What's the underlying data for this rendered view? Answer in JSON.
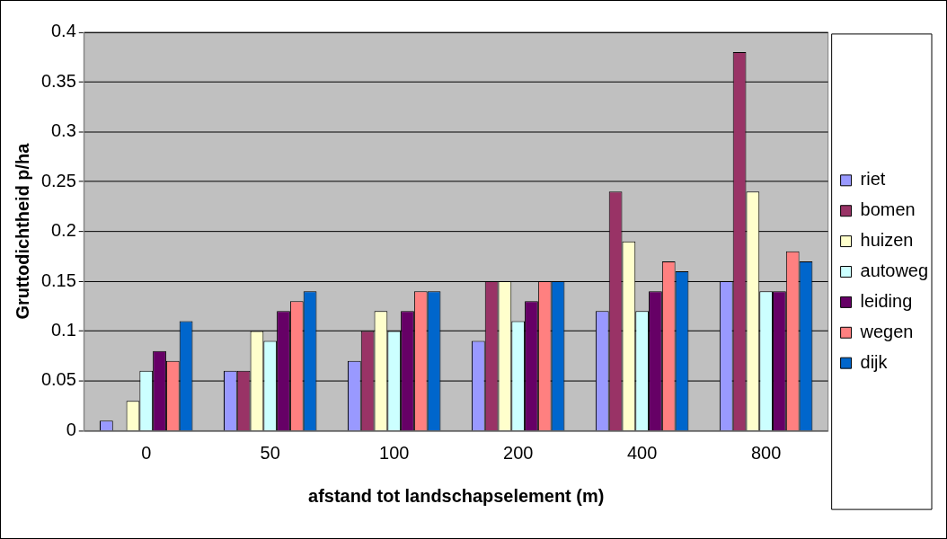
{
  "chart_data": {
    "type": "bar",
    "xlabel": "afstand tot landschapselement (m)",
    "ylabel": "Gruttodichtheid p/ha",
    "categories": [
      "0",
      "50",
      "100",
      "200",
      "400",
      "800"
    ],
    "series": [
      {
        "name": "riet",
        "color": "#9999ff",
        "values": [
          0.01,
          0.06,
          0.07,
          0.09,
          0.12,
          0.15
        ]
      },
      {
        "name": "bomen",
        "color": "#993366",
        "values": [
          0,
          0.06,
          0.1,
          0.15,
          0.24,
          0.38
        ]
      },
      {
        "name": "huizen",
        "color": "#ffffcc",
        "values": [
          0.03,
          0.1,
          0.12,
          0.15,
          0.19,
          0.24
        ]
      },
      {
        "name": "autoweg",
        "color": "#ccffff",
        "values": [
          0.06,
          0.09,
          0.1,
          0.11,
          0.12,
          0.14
        ]
      },
      {
        "name": "leiding",
        "color": "#660066",
        "values": [
          0.08,
          0.12,
          0.12,
          0.13,
          0.14,
          0.14
        ]
      },
      {
        "name": "wegen",
        "color": "#ff8080",
        "values": [
          0.07,
          0.13,
          0.14,
          0.15,
          0.17,
          0.18
        ]
      },
      {
        "name": "dijk",
        "color": "#0066cc",
        "values": [
          0.11,
          0.14,
          0.14,
          0.15,
          0.16,
          0.17
        ]
      }
    ],
    "ylim": [
      0,
      0.4
    ],
    "yticks": [
      0,
      0.05,
      0.1,
      0.15,
      0.2,
      0.25,
      0.3,
      0.35,
      0.4
    ],
    "grid": "y",
    "legend": "right"
  }
}
